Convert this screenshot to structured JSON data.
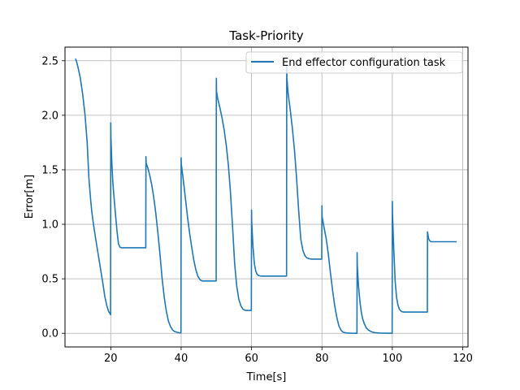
{
  "chart_data": {
    "type": "line",
    "title": "Task-Priority",
    "xlabel": "Time[s]",
    "ylabel": "Error[m]",
    "xlim": [
      7.0,
      121.5
    ],
    "ylim": [
      -0.125,
      2.625
    ],
    "xticks": [
      20,
      40,
      60,
      80,
      100,
      120
    ],
    "yticks": [
      0.0,
      0.5,
      1.0,
      1.5,
      2.0,
      2.5
    ],
    "xtick_labels": [
      "20",
      "40",
      "60",
      "80",
      "100",
      "120"
    ],
    "ytick_labels": [
      "0.0",
      "0.5",
      "1.0",
      "1.5",
      "2.0",
      "2.5"
    ],
    "grid": true,
    "legend_position": "top-right",
    "colors": {
      "series": "#1f77b4",
      "grid": "#b0b0b0",
      "axes": "#000000"
    },
    "series": [
      {
        "name": "End effector configuration task",
        "x": [
          10.0,
          10.3,
          10.7,
          11.3,
          12.0,
          12.7,
          13.3,
          13.8,
          14.3,
          14.6,
          15.0,
          15.6,
          16.3,
          17.0,
          17.7,
          18.3,
          18.9,
          19.4,
          19.8,
          19.95,
          20.0,
          20.05,
          20.3,
          20.6,
          21.0,
          21.4,
          21.8,
          22.2,
          22.6,
          23.0,
          24.0,
          25.5,
          27.0,
          28.5,
          29.95,
          30.0,
          30.05,
          30.5,
          31.0,
          31.6,
          32.2,
          32.8,
          33.4,
          34.0,
          34.6,
          35.2,
          35.8,
          36.4,
          37.0,
          37.6,
          38.2,
          38.8,
          39.4,
          39.95,
          40.0,
          40.05,
          40.6,
          41.2,
          41.8,
          42.4,
          43.0,
          43.6,
          44.2,
          44.8,
          45.4,
          46.0,
          47.0,
          48.0,
          49.95,
          50.0,
          50.05,
          50.4,
          51.0,
          51.6,
          52.2,
          52.8,
          53.4,
          54.0,
          54.6,
          55.2,
          55.8,
          56.4,
          57.0,
          57.6,
          58.2,
          58.8,
          59.95,
          60.0,
          60.05,
          60.4,
          60.8,
          61.2,
          61.6,
          62.0,
          62.6,
          63.2,
          64.0,
          66.0,
          68.0,
          69.95,
          70.0,
          70.05,
          70.4,
          71.0,
          71.6,
          72.2,
          72.8,
          73.4,
          74.0,
          74.6,
          75.2,
          75.8,
          76.4,
          77.0,
          77.6,
          78.2,
          79.95,
          80.0,
          80.05,
          80.6,
          81.2,
          81.8,
          82.4,
          83.0,
          83.6,
          84.2,
          84.8,
          85.4,
          86.0,
          87.0,
          88.0,
          89.95,
          90.0,
          90.05,
          90.4,
          90.8,
          91.2,
          91.6,
          92.0,
          92.6,
          93.2,
          94.0,
          95.0,
          96.5,
          98.0,
          99.95,
          100.0,
          100.05,
          100.4,
          100.8,
          101.2,
          101.6,
          102.0,
          102.6,
          103.2,
          104.0,
          106.0,
          108.0,
          109.95,
          110.0,
          110.05,
          110.3,
          110.6,
          111.0,
          112.0,
          114.0,
          116.0,
          118.3
        ],
        "y": [
          2.52,
          2.49,
          2.44,
          2.35,
          2.2,
          2.0,
          1.75,
          1.42,
          1.22,
          1.12,
          1.02,
          0.89,
          0.75,
          0.61,
          0.47,
          0.34,
          0.25,
          0.2,
          0.18,
          0.17,
          1.93,
          1.8,
          1.57,
          1.38,
          1.22,
          1.07,
          0.93,
          0.82,
          0.79,
          0.785,
          0.785,
          0.785,
          0.785,
          0.785,
          0.785,
          1.62,
          1.56,
          1.52,
          1.46,
          1.37,
          1.25,
          1.1,
          0.92,
          0.72,
          0.5,
          0.33,
          0.2,
          0.11,
          0.06,
          0.03,
          0.015,
          0.01,
          0.005,
          0.003,
          1.61,
          1.55,
          1.41,
          1.24,
          1.07,
          0.92,
          0.79,
          0.67,
          0.58,
          0.52,
          0.49,
          0.48,
          0.48,
          0.48,
          0.48,
          2.34,
          2.22,
          2.15,
          2.07,
          1.98,
          1.87,
          1.73,
          1.55,
          1.3,
          0.98,
          0.64,
          0.43,
          0.31,
          0.25,
          0.22,
          0.21,
          0.21,
          0.21,
          1.13,
          1.02,
          0.8,
          0.64,
          0.57,
          0.54,
          0.53,
          0.525,
          0.525,
          0.525,
          0.525,
          0.525,
          0.525,
          2.45,
          2.34,
          2.2,
          2.05,
          1.88,
          1.68,
          1.42,
          1.12,
          0.86,
          0.76,
          0.71,
          0.69,
          0.685,
          0.68,
          0.68,
          0.68,
          0.68,
          1.17,
          1.07,
          0.97,
          0.87,
          0.73,
          0.56,
          0.4,
          0.26,
          0.15,
          0.07,
          0.03,
          0.01,
          0.003,
          0.001,
          0.0,
          0.74,
          0.62,
          0.43,
          0.29,
          0.19,
          0.13,
          0.09,
          0.05,
          0.03,
          0.015,
          0.006,
          0.002,
          0.001,
          0.0,
          1.21,
          1.09,
          0.78,
          0.48,
          0.33,
          0.26,
          0.22,
          0.2,
          0.195,
          0.195,
          0.195,
          0.195,
          0.195,
          0.93,
          0.92,
          0.87,
          0.85,
          0.84,
          0.84,
          0.84,
          0.84,
          0.84
        ]
      }
    ]
  }
}
